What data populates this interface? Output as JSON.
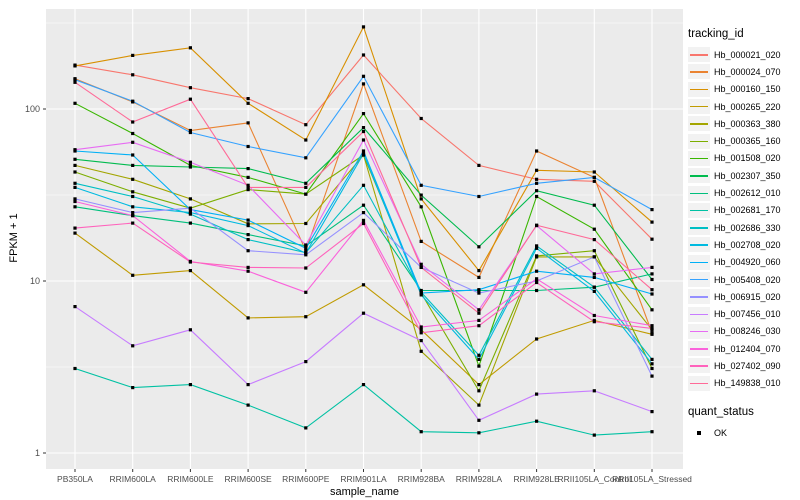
{
  "chart_data": {
    "type": "line",
    "xlabel": "sample_name",
    "ylabel": "FPKM + 1",
    "y_scale": "log10",
    "y_ticks": [
      1,
      10,
      100
    ],
    "y_minor_ticks": [
      3.162,
      31.62,
      316.2
    ],
    "x_categories": [
      "PB350LA",
      "RRIM600LA",
      "RRIM600LE",
      "RRIM600SE",
      "RRIM600PE",
      "RRIM901LA",
      "RRIM928BA",
      "RRIM928LA",
      "RRIM928LE",
      "RRII105LA_Control",
      "RRII105LA_Stressed"
    ],
    "legend_title": "tracking_id",
    "legend2_title": "quant_status",
    "legend2_items": [
      {
        "label": "OK",
        "marker": "square",
        "color": "#000000"
      }
    ],
    "point_marker": "square",
    "point_color": "#000000",
    "series": [
      {
        "name": "Hb_000021_020",
        "color": "#F8766D",
        "values": [
          180,
          158,
          133,
          115,
          81,
          206,
          88,
          47,
          39,
          38,
          17.5
        ]
      },
      {
        "name": "Hb_000024_070",
        "color": "#EA8331",
        "values": [
          150,
          110,
          75,
          83,
          15,
          140,
          17,
          10.5,
          57,
          40,
          5.0
        ]
      },
      {
        "name": "Hb_000160_150",
        "color": "#D89000",
        "values": [
          178,
          205,
          227,
          108,
          66,
          300,
          30,
          11.5,
          44,
          43,
          22
        ]
      },
      {
        "name": "Hb_000265_220",
        "color": "#C09B00",
        "values": [
          19,
          10.8,
          11.5,
          6.1,
          6.2,
          9.5,
          5.2,
          2.5,
          4.6,
          5.9,
          4.9
        ]
      },
      {
        "name": "Hb_000363_380",
        "color": "#A3A500",
        "values": [
          47,
          39,
          30,
          21.5,
          21.6,
          54,
          3.9,
          1.9,
          13.8,
          13.8,
          5.2
        ]
      },
      {
        "name": "Hb_000365_160",
        "color": "#7CAE00",
        "values": [
          43,
          33,
          26.5,
          34,
          32,
          54,
          8.5,
          2.3,
          14,
          15,
          3.1
        ]
      },
      {
        "name": "Hb_001508_020",
        "color": "#39B600",
        "values": [
          108,
          72,
          47,
          40,
          32,
          94,
          27,
          3.2,
          31,
          20,
          6.8
        ]
      },
      {
        "name": "Hb_002307_350",
        "color": "#00BB4E",
        "values": [
          51,
          47,
          46,
          45,
          37,
          78,
          31.6,
          15.8,
          33.5,
          27.6,
          10.2
        ]
      },
      {
        "name": "Hb_002612_010",
        "color": "#00BF7D",
        "values": [
          27,
          24,
          21.7,
          18.6,
          16,
          27.6,
          8.8,
          8.8,
          8.8,
          9.2,
          11
        ]
      },
      {
        "name": "Hb_002681_170",
        "color": "#00C1A3",
        "values": [
          3.1,
          2.4,
          2.5,
          1.9,
          1.4,
          2.5,
          1.33,
          1.31,
          1.53,
          1.27,
          1.33
        ]
      },
      {
        "name": "Hb_002686_330",
        "color": "#00BFC4",
        "values": [
          37,
          31,
          24.5,
          17.4,
          14.6,
          36,
          8.6,
          3.7,
          16,
          9.2,
          3.5
        ]
      },
      {
        "name": "Hb_002708_020",
        "color": "#00BAE0",
        "values": [
          35,
          27,
          25,
          21,
          14.5,
          55,
          8.3,
          3.5,
          15.5,
          8.7,
          3.3
        ]
      },
      {
        "name": "Hb_004920_060",
        "color": "#00B0F6",
        "values": [
          57,
          54,
          26,
          22.6,
          15.5,
          57,
          8.5,
          8.9,
          11.4,
          10.5,
          8.4
        ]
      },
      {
        "name": "Hb_005408_020",
        "color": "#35A2FF",
        "values": [
          148,
          111,
          73,
          60.5,
          52,
          155,
          36,
          31,
          37,
          40,
          26
        ]
      },
      {
        "name": "Hb_006915_020",
        "color": "#9590FF",
        "values": [
          30,
          25,
          26.5,
          15,
          14.2,
          25,
          12,
          8.5,
          10,
          13.8,
          2.8
        ]
      },
      {
        "name": "Hb_007456_010",
        "color": "#C77CFF",
        "values": [
          7.1,
          4.2,
          5.2,
          2.5,
          3.4,
          6.5,
          4.5,
          1.55,
          2.2,
          2.3,
          1.74
        ]
      },
      {
        "name": "Hb_008246_030",
        "color": "#E76BF3",
        "values": [
          58,
          64,
          49,
          36,
          16.2,
          66,
          12.5,
          6.8,
          21,
          11,
          12
        ]
      },
      {
        "name": "Hb_012404_070",
        "color": "#FA62DB",
        "values": [
          29,
          24,
          13,
          11.4,
          8.6,
          22.5,
          5.4,
          5.9,
          10.3,
          6.3,
          5.5
        ]
      },
      {
        "name": "Hb_027402_090",
        "color": "#FF62BC",
        "values": [
          20.3,
          21.7,
          12.9,
          12,
          11.9,
          21.6,
          5.0,
          5.5,
          9.8,
          5.8,
          5.3
        ]
      },
      {
        "name": "Hb_149838_010",
        "color": "#FF6A98",
        "values": [
          143,
          84,
          114,
          35,
          35,
          74,
          12,
          6.5,
          21.1,
          17.4,
          8.9
        ]
      }
    ]
  },
  "colors": {
    "panel_bg": "#EBEBEB",
    "grid_major": "#FFFFFF",
    "grid_minor": "#F7F7F7",
    "tick_label": "#4D4D4D",
    "tick_mark": "#333333",
    "legend_key_bg": "#F2F2F2",
    "page_bg": "#FFFFFF"
  }
}
